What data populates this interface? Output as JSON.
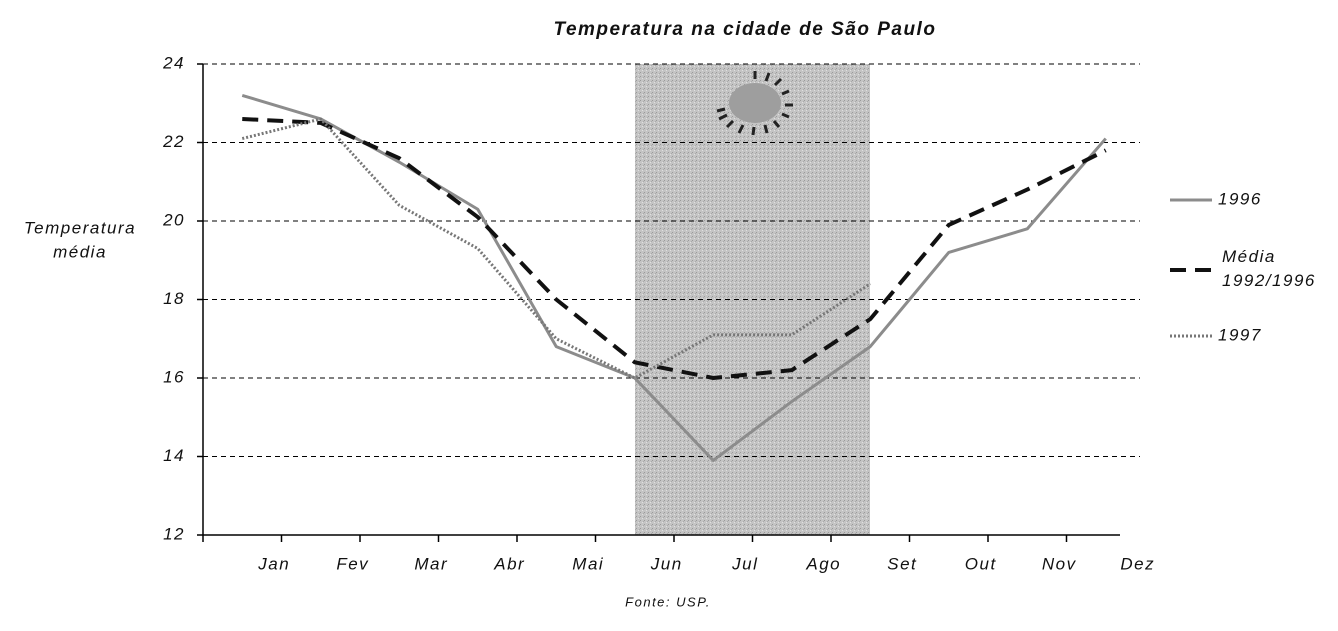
{
  "chart_data": {
    "type": "line",
    "title": "Temperatura na cidade de São Paulo",
    "y_label": [
      "Temperatura",
      "média"
    ],
    "source": "Fonte: USP.",
    "categories": [
      "Jan",
      "Fev",
      "Mar",
      "Abr",
      "Mai",
      "Jun",
      "Jul",
      "Ago",
      "Set",
      "Out",
      "Nov",
      "Dez"
    ],
    "series": [
      {
        "name": "1996",
        "color": "#8c8c8c",
        "style": "solid",
        "values": [
          23.2,
          22.6,
          21.5,
          20.3,
          16.8,
          16.0,
          13.9,
          15.4,
          16.8,
          19.2,
          19.8,
          22.1
        ]
      },
      {
        "name": "Média 1992/1996",
        "color": "#111111",
        "style": "dashed",
        "values": [
          22.6,
          22.5,
          21.6,
          20.1,
          18.0,
          16.4,
          16.0,
          16.2,
          17.5,
          19.9,
          20.8,
          21.8
        ]
      },
      {
        "name": "1997",
        "color": "#777777",
        "style": "dotted",
        "values": [
          22.1,
          22.6,
          20.4,
          19.3,
          17.0,
          16.0,
          17.1,
          17.1,
          18.4,
          null,
          null,
          null
        ]
      }
    ],
    "ylim": [
      12,
      24
    ],
    "yticks": [
      12,
      14,
      16,
      18,
      20,
      22,
      24
    ],
    "grid": true,
    "legend": "right"
  }
}
